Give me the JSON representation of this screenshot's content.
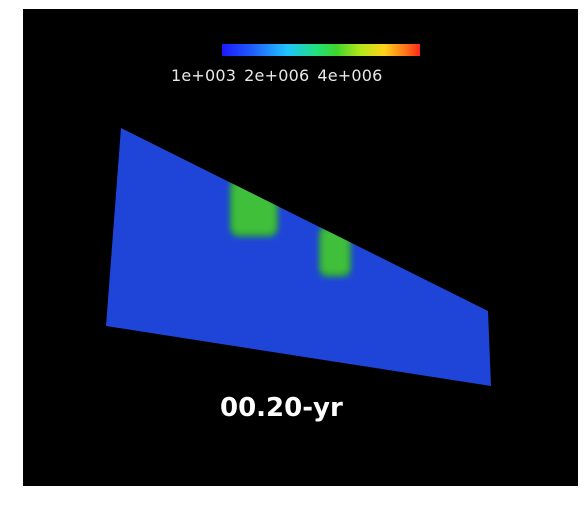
{
  "colorbar": {
    "tick_labels": [
      "1e+003",
      "2e+006",
      "4e+006"
    ],
    "colors": [
      "#1a1aff",
      "#20c4ff",
      "#3fd62a",
      "#ffd21a",
      "#ff2a1a"
    ]
  },
  "plot": {
    "background_color": "#000000",
    "field_color": "#1f45d8",
    "anomaly_color": "#3fbf3a"
  },
  "time_label": "00.20-yr"
}
